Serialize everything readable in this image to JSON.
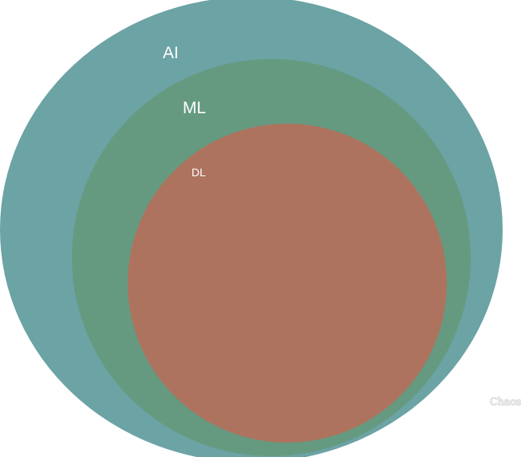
{
  "diagram": {
    "sets": [
      {
        "id": "ai",
        "label": "AI",
        "color": "#6ca3a5"
      },
      {
        "id": "ml",
        "label": "ML",
        "color": "#659a81"
      },
      {
        "id": "dl",
        "label": "DL",
        "color": "#ad735e"
      }
    ]
  },
  "watermark": {
    "text": "Chaos"
  }
}
